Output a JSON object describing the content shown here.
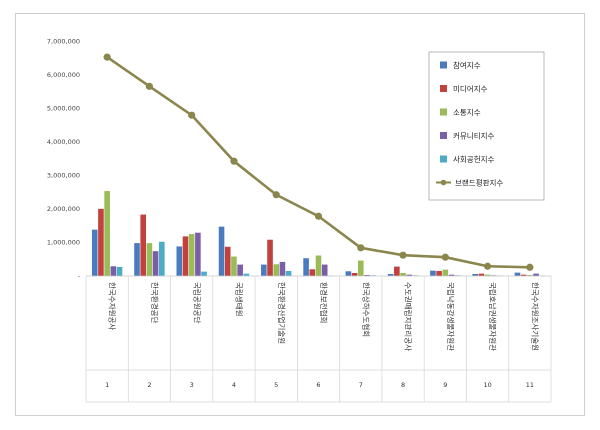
{
  "chart_data": {
    "type": "bar",
    "ylim": [
      0,
      7000000
    ],
    "yticks": [
      "-",
      "1,000,000",
      "2,000,000",
      "3,000,000",
      "4,000,000",
      "5,000,000",
      "6,000,000",
      "7,000,000"
    ],
    "ytick_values": [
      0,
      1000000,
      2000000,
      3000000,
      4000000,
      5000000,
      6000000,
      7000000
    ],
    "categories": [
      "한국수자원공사",
      "한국환경공단",
      "국립공원공단",
      "국립생태원",
      "한국환경산업기술원",
      "환경보전협회",
      "한국상하수도협회",
      "수도권매립지관리공사",
      "국립낙동강생물자원관",
      "국립호남권생물자원관",
      "한국수자원조사기술원"
    ],
    "numbers": [
      "1",
      "2",
      "3",
      "4",
      "5",
      "6",
      "7",
      "8",
      "9",
      "10",
      "11"
    ],
    "series": [
      {
        "name": "참여지수",
        "color": "#4a7bbf",
        "values": [
          1380000,
          980000,
          880000,
          1470000,
          340000,
          530000,
          140000,
          60000,
          160000,
          60000,
          100000
        ]
      },
      {
        "name": "미디어지수",
        "color": "#c0413d",
        "values": [
          2000000,
          1830000,
          1180000,
          870000,
          1080000,
          200000,
          90000,
          280000,
          150000,
          70000,
          40000
        ]
      },
      {
        "name": "소통지수",
        "color": "#9bbb59",
        "values": [
          2530000,
          980000,
          1250000,
          580000,
          350000,
          610000,
          460000,
          90000,
          190000,
          40000,
          30000
        ]
      },
      {
        "name": "커뮤니티지수",
        "color": "#7a5fa8",
        "values": [
          290000,
          740000,
          1290000,
          340000,
          420000,
          340000,
          30000,
          40000,
          40000,
          20000,
          70000
        ]
      },
      {
        "name": "사회공헌지수",
        "color": "#4bacc6",
        "values": [
          270000,
          1020000,
          130000,
          70000,
          150000,
          10000,
          20000,
          20000,
          20000,
          10000,
          10000
        ]
      }
    ],
    "line": {
      "name": "브랜드평판지수",
      "color": "#8b864e",
      "values": [
        6520000,
        5650000,
        4790000,
        3420000,
        2420000,
        1780000,
        840000,
        620000,
        560000,
        290000,
        260000
      ]
    },
    "legend_position": "top-right",
    "grid": false
  }
}
